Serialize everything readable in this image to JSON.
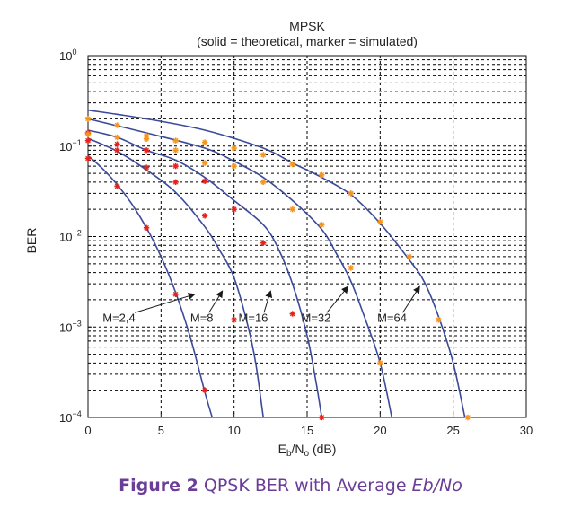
{
  "chart_data": {
    "type": "line",
    "title": "MPSK",
    "subtitle": "(solid = theoretical, marker = simulated)",
    "xlabel": "Eb/No (dB)",
    "ylabel": "BER",
    "xlim": [
      0,
      30
    ],
    "ylim": [
      0.0001,
      1
    ],
    "yscale": "log",
    "grid": true,
    "x_ticks": [
      "0",
      "5",
      "10",
      "15",
      "20",
      "25",
      "30"
    ],
    "y_ticks": [
      {
        "base": "10",
        "exp": "0"
      },
      {
        "base": "10",
        "exp": "−1"
      },
      {
        "base": "10",
        "exp": "−2"
      },
      {
        "base": "10",
        "exp": "−3"
      },
      {
        "base": "10",
        "exp": "−4"
      }
    ],
    "series": [
      {
        "name": "M=2,4",
        "annotation": "M=2,4",
        "label_x": 1,
        "label_y": 0.0012,
        "arrow_to": [
          7.3,
          0.0023
        ],
        "theory": [
          [
            0,
            0.0786
          ],
          [
            1,
            0.0563
          ],
          [
            2,
            0.0375
          ],
          [
            3,
            0.0229
          ],
          [
            4,
            0.0125
          ],
          [
            5,
            0.006
          ],
          [
            6,
            0.0024
          ],
          [
            7,
            0.00077
          ],
          [
            8,
            0.00019
          ],
          [
            8.5,
            0.0001
          ]
        ],
        "sim": [
          [
            0,
            0.073
          ],
          [
            2,
            0.036
          ],
          [
            4,
            0.0125
          ],
          [
            6,
            0.0023
          ],
          [
            8,
            0.0002
          ]
        ]
      },
      {
        "name": "M=8",
        "annotation": "M=8",
        "label_x": 7,
        "label_y": 0.0012,
        "arrow_to": [
          9.2,
          0.0025
        ],
        "theory": [
          [
            0,
            0.122
          ],
          [
            2,
            0.0876
          ],
          [
            4,
            0.0545
          ],
          [
            6,
            0.0308
          ],
          [
            8,
            0.0128
          ],
          [
            9,
            0.0071
          ],
          [
            10,
            0.0035
          ],
          [
            11,
            0.00095
          ],
          [
            11.5,
            0.00038
          ],
          [
            12,
            0.0001
          ]
        ],
        "sim": [
          [
            0,
            0.115
          ],
          [
            2,
            0.09
          ],
          [
            4,
            0.058
          ],
          [
            6,
            0.04
          ],
          [
            8,
            0.017
          ],
          [
            10,
            0.0012
          ]
        ]
      },
      {
        "name": "M=16",
        "annotation": "M=16",
        "label_x": 10.3,
        "label_y": 0.0012,
        "arrow_to": [
          12.5,
          0.0025
        ],
        "theory": [
          [
            0,
            0.15
          ],
          [
            2,
            0.125
          ],
          [
            4,
            0.09
          ],
          [
            6,
            0.07
          ],
          [
            8,
            0.045
          ],
          [
            10,
            0.025
          ],
          [
            12,
            0.0135
          ],
          [
            13,
            0.0075
          ],
          [
            14,
            0.003
          ],
          [
            15,
            0.0008
          ],
          [
            15.6,
            0.00025
          ],
          [
            16,
            0.0001
          ]
        ],
        "sim": [
          [
            0,
            0.14
          ],
          [
            2,
            0.105
          ],
          [
            4,
            0.09
          ],
          [
            6,
            0.06
          ],
          [
            8,
            0.041
          ],
          [
            10,
            0.02
          ],
          [
            12,
            0.0085
          ],
          [
            14,
            0.0014
          ],
          [
            16,
            0.0001
          ]
        ]
      },
      {
        "name": "M=32",
        "annotation": "M=32",
        "label_x": 14.6,
        "label_y": 0.0012,
        "arrow_to": [
          17.8,
          0.0028
        ],
        "theory": [
          [
            0,
            0.2
          ],
          [
            4,
            0.14
          ],
          [
            8,
            0.095
          ],
          [
            10,
            0.068
          ],
          [
            12,
            0.045
          ],
          [
            14,
            0.025
          ],
          [
            16,
            0.012
          ],
          [
            17,
            0.0065
          ],
          [
            18,
            0.0032
          ],
          [
            19,
            0.0012
          ],
          [
            20,
            0.0004
          ],
          [
            20.8,
            0.0001
          ]
        ],
        "sim": [
          [
            0,
            0.2
          ],
          [
            2,
            0.17
          ],
          [
            4,
            0.13
          ],
          [
            6,
            0.09
          ],
          [
            8,
            0.065
          ],
          [
            10,
            0.06
          ],
          [
            12,
            0.04
          ],
          [
            14,
            0.02
          ],
          [
            16,
            0.0135
          ],
          [
            18,
            0.0045
          ],
          [
            20,
            0.0004
          ]
        ]
      },
      {
        "name": "M=64",
        "annotation": "M=64",
        "label_x": 19.8,
        "label_y": 0.0012,
        "arrow_to": [
          22.7,
          0.0028
        ],
        "theory": [
          [
            0,
            0.25
          ],
          [
            4,
            0.2
          ],
          [
            8,
            0.15
          ],
          [
            12,
            0.095
          ],
          [
            14,
            0.065
          ],
          [
            16,
            0.045
          ],
          [
            18,
            0.029
          ],
          [
            20,
            0.014
          ],
          [
            22,
            0.0055
          ],
          [
            23,
            0.0032
          ],
          [
            24,
            0.0013
          ],
          [
            25,
            0.0004
          ],
          [
            25.8,
            0.0001
          ]
        ],
        "sim": [
          [
            0,
            0.135
          ],
          [
            2,
            0.125
          ],
          [
            4,
            0.12
          ],
          [
            6,
            0.115
          ],
          [
            8,
            0.11
          ],
          [
            10,
            0.095
          ],
          [
            12,
            0.08
          ],
          [
            14,
            0.063
          ],
          [
            16,
            0.048
          ],
          [
            18,
            0.03
          ],
          [
            20,
            0.0145
          ],
          [
            22,
            0.006
          ],
          [
            24,
            0.0012
          ],
          [
            26,
            0.0001
          ]
        ]
      }
    ],
    "colors": {
      "line": "#3b4a9a",
      "marker_red": "#e8201a",
      "marker_orange": "#f7941d",
      "arrow": "#1a1a1a"
    }
  },
  "caption": {
    "bold": "Figure 2",
    "text": " QPSK BER with Average ",
    "italic": "Eb/No",
    "color": "#6a3d98"
  }
}
